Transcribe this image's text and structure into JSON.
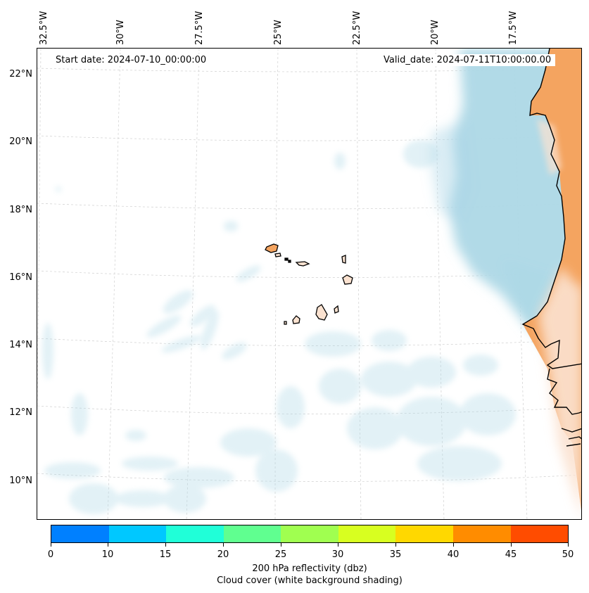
{
  "map": {
    "start_date": "Start date: 2024-07-10_00:00:00",
    "valid_date": "Valid_date: 2024-07-11T10:00:00.00",
    "lon_labels": [
      "32.5°W",
      "30°W",
      "27.5°W",
      "25°W",
      "22.5°W",
      "20°W",
      "17.5°W"
    ],
    "lat_labels": [
      "22°N",
      "20°N",
      "18°N",
      "16°N",
      "14°N",
      "12°N",
      "10°N"
    ],
    "colors": {
      "cloud": "#add8e6",
      "land": "#f4a460",
      "coast": "#000000",
      "grid": "#c8c8c8"
    }
  },
  "colorbar": {
    "ticks": [
      "0",
      "10",
      "15",
      "20",
      "25",
      "30",
      "35",
      "40",
      "45",
      "50"
    ],
    "colors": [
      "#0080ff",
      "#00c8ff",
      "#20ffd8",
      "#60ff90",
      "#a0ff50",
      "#d8ff20",
      "#ffd800",
      "#ff8c00",
      "#ff4c00"
    ],
    "label_line1": "200 hPa reflectivity (dbz)",
    "label_line2": "Cloud cover (white background shading)"
  }
}
